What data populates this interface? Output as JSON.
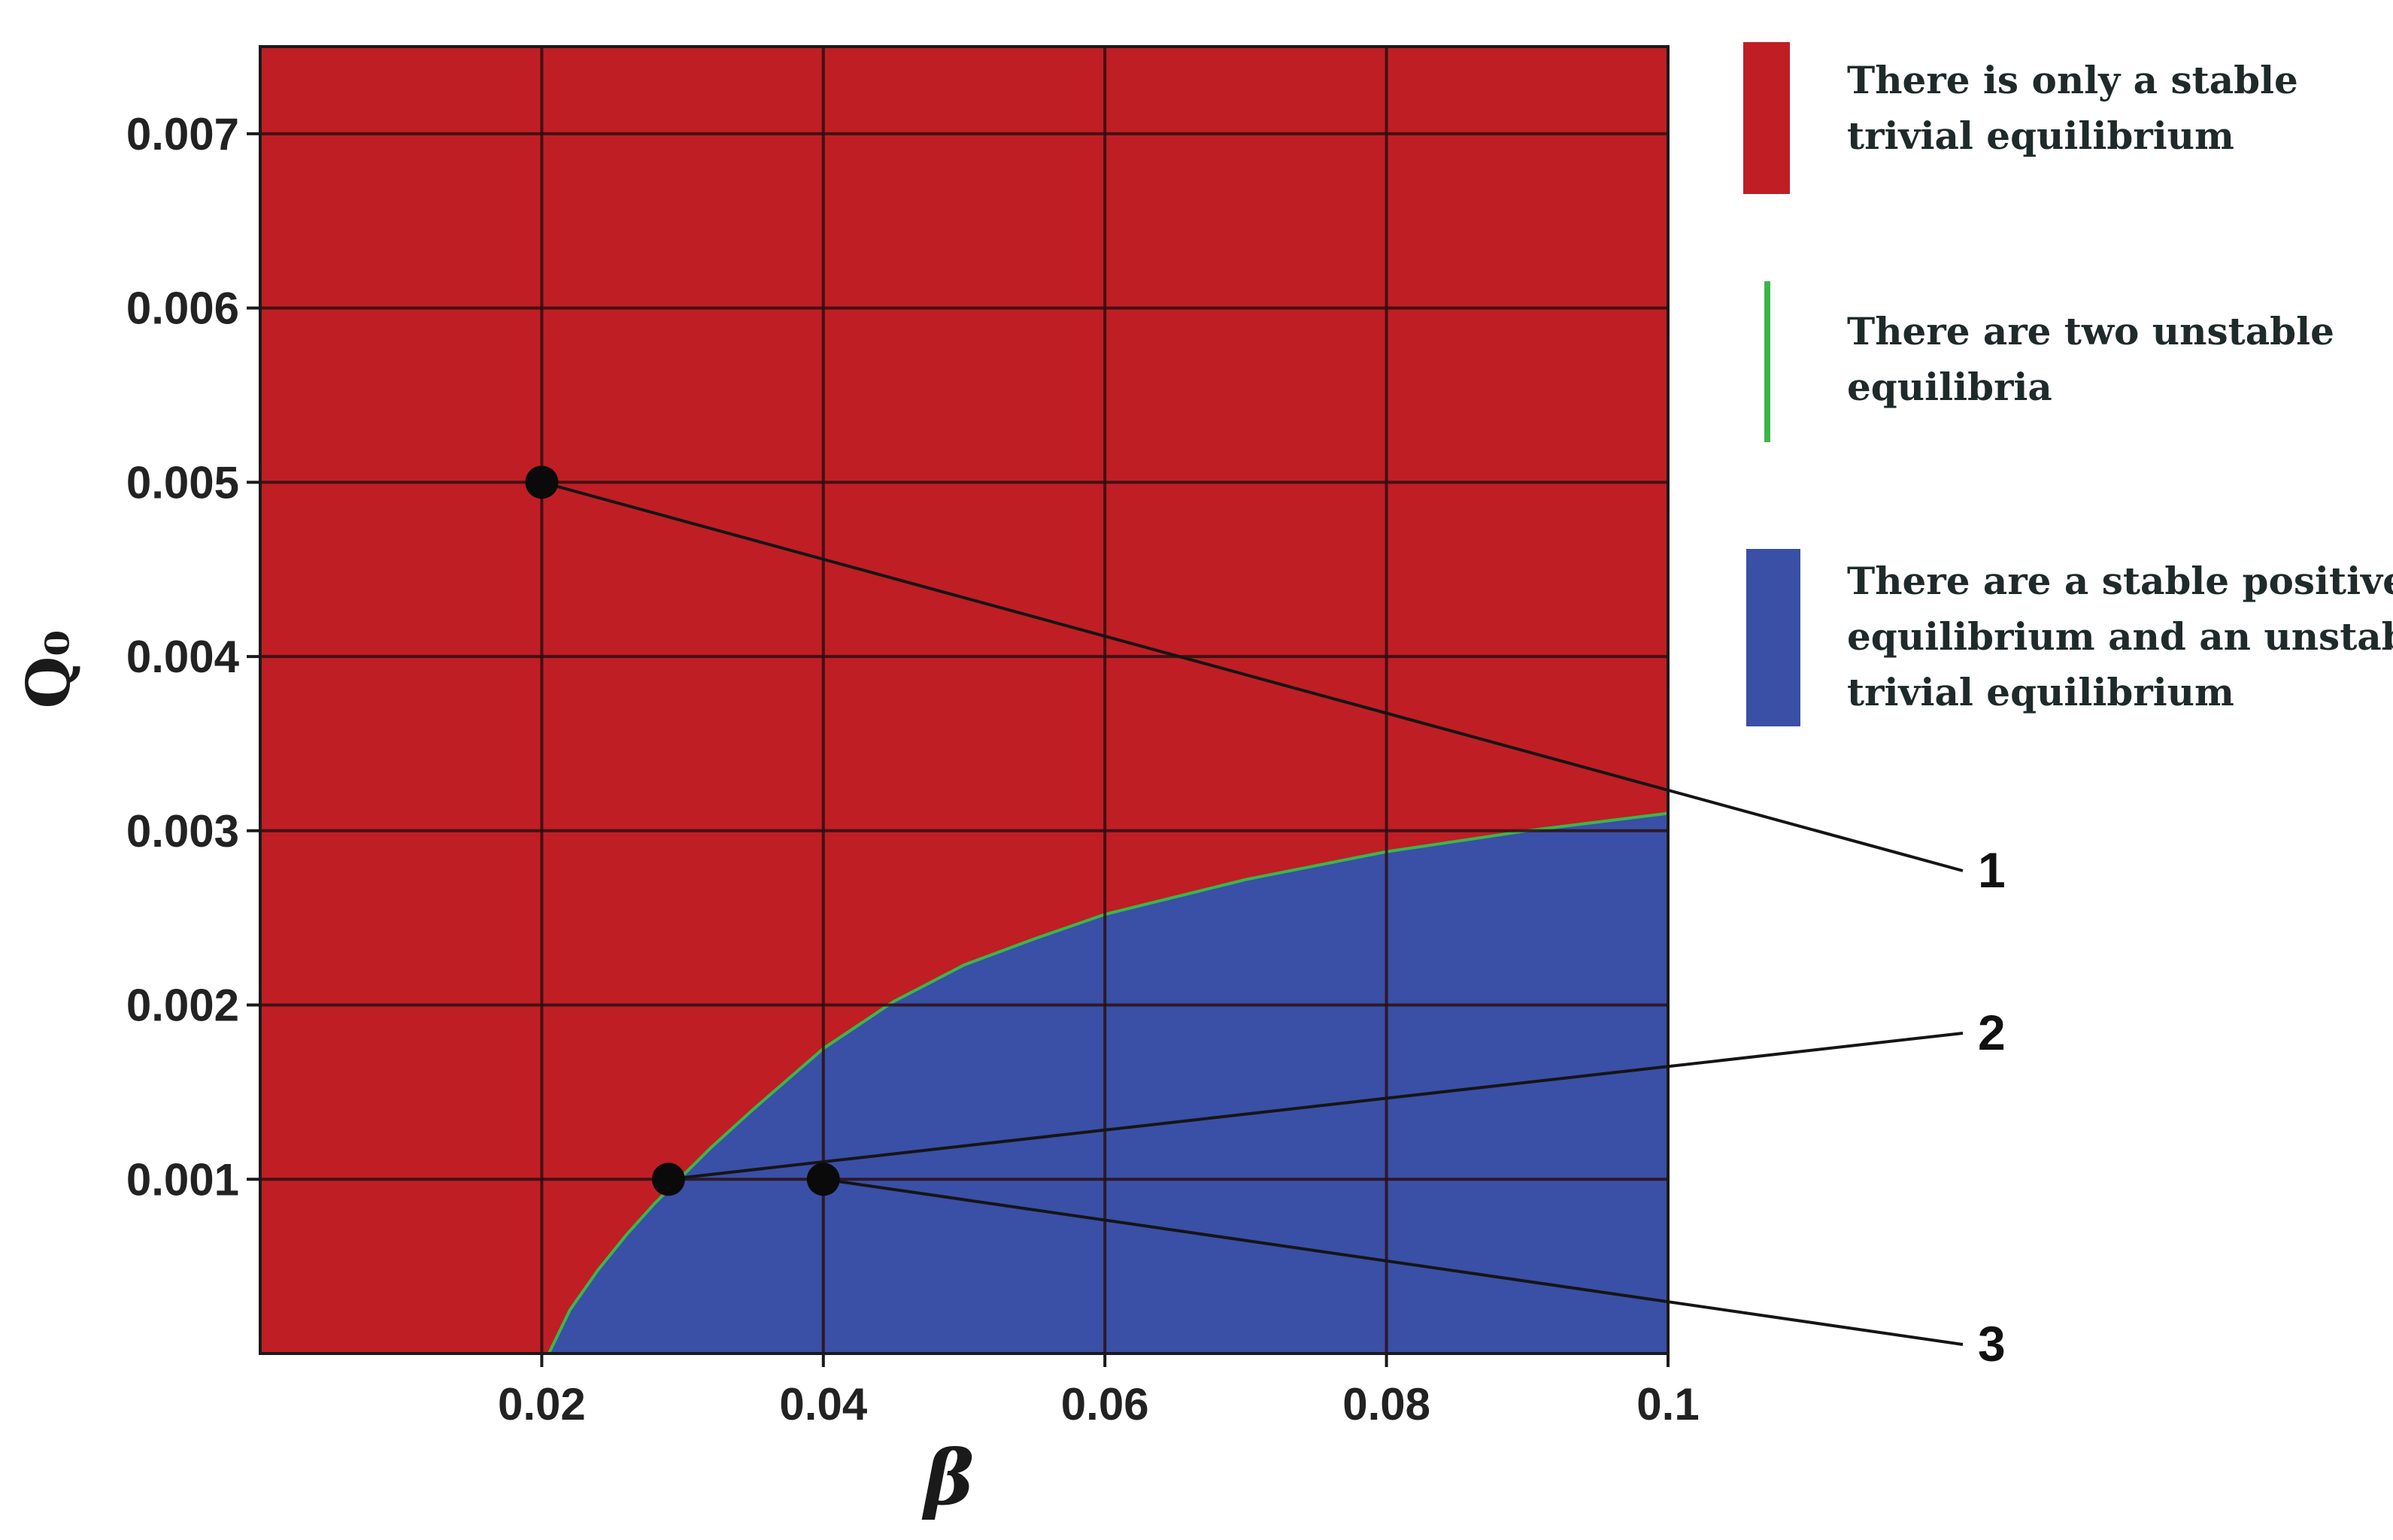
{
  "chart_data": {
    "type": "heatmap",
    "xlabel": "β",
    "ylabel": "Q₀",
    "xlim": [
      0,
      0.1
    ],
    "ylim": [
      0,
      0.0075
    ],
    "x_ticks": [
      {
        "value": 0.02,
        "label": "0.02"
      },
      {
        "value": 0.04,
        "label": "0.04"
      },
      {
        "value": 0.06,
        "label": "0.06"
      },
      {
        "value": 0.08,
        "label": "0.08"
      },
      {
        "value": 0.1,
        "label": "0.1"
      }
    ],
    "y_ticks": [
      {
        "value": 0.001,
        "label": "0.001"
      },
      {
        "value": 0.002,
        "label": "0.002"
      },
      {
        "value": 0.003,
        "label": "0.003"
      },
      {
        "value": 0.004,
        "label": "0.004"
      },
      {
        "value": 0.005,
        "label": "0.005"
      },
      {
        "value": 0.006,
        "label": "0.006"
      },
      {
        "value": 0.007,
        "label": "0.007"
      }
    ],
    "grid": true,
    "regions": [
      {
        "key": "red",
        "color": "#bf1e24",
        "legend": [
          "There is only a stable",
          "trivial equilibrium"
        ]
      },
      {
        "key": "green",
        "color": "#3cb64a",
        "legend": [
          "There are two unstable",
          "equilibria"
        ]
      },
      {
        "key": "blue",
        "color": "#3a4fa6",
        "legend": [
          "There are a stable positive",
          "equilibrium and an unstable",
          "trivial equilibrium"
        ]
      }
    ],
    "boundary": {
      "x": [
        0.0205,
        0.022,
        0.024,
        0.026,
        0.028,
        0.03,
        0.032,
        0.035,
        0.04,
        0.045,
        0.05,
        0.055,
        0.06,
        0.07,
        0.08,
        0.09,
        0.1
      ],
      "y": [
        0.0,
        0.00025,
        0.00048,
        0.00068,
        0.00086,
        0.00102,
        0.00118,
        0.0014,
        0.00175,
        0.00202,
        0.00223,
        0.00238,
        0.00252,
        0.00272,
        0.00288,
        0.003,
        0.0031
      ]
    },
    "points": [
      {
        "label": "1",
        "x": 0.02,
        "y": 0.005
      },
      {
        "label": "2",
        "x": 0.029,
        "y": 0.001
      },
      {
        "label": "3",
        "x": 0.04,
        "y": 0.001
      }
    ]
  }
}
